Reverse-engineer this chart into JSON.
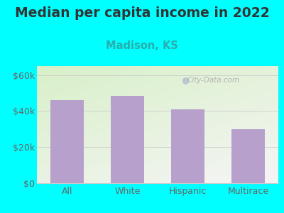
{
  "title": "Median per capita income in 2022",
  "subtitle": "Madison, KS",
  "categories": [
    "All",
    "White",
    "Hispanic",
    "Multirace"
  ],
  "values": [
    46000,
    48500,
    41000,
    30000
  ],
  "bar_color": "#b8a0cc",
  "title_fontsize": 13.5,
  "subtitle_fontsize": 10.5,
  "subtitle_color": "#2aacac",
  "title_color": "#333333",
  "bg_outer_color": "#00FFFF",
  "yticks": [
    0,
    20000,
    40000,
    60000
  ],
  "ylim": [
    0,
    65000
  ],
  "watermark": "City-Data.com",
  "tick_label_color": "#666666",
  "grid_color": "#cccccc",
  "xtick_fontsize": 9,
  "ytick_fontsize": 9
}
